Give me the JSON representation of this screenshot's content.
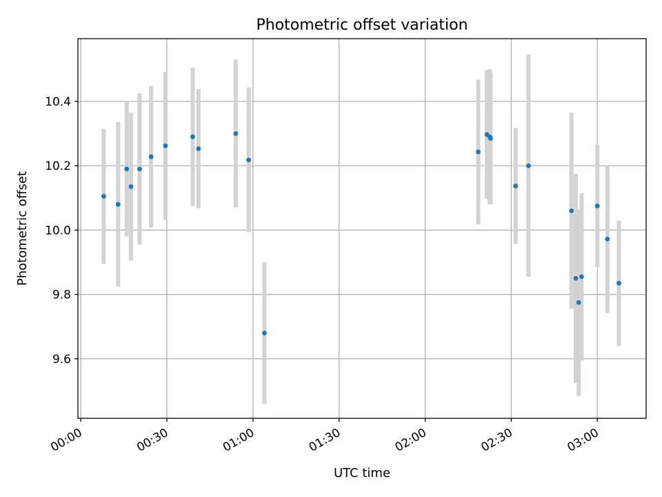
{
  "chart_data": {
    "type": "scatter",
    "title": "Photometric offset variation",
    "xlabel": "UTC time",
    "ylabel": "Photometric offset",
    "x_ticks": [
      "00:00",
      "00:30",
      "01:00",
      "01:30",
      "02:00",
      "02:30",
      "03:00"
    ],
    "y_ticks": [
      "9.6",
      "9.8",
      "10.0",
      "10.2",
      "10.4"
    ],
    "xlim": [
      "23:59",
      "03:17"
    ],
    "ylim": [
      9.415,
      10.595
    ],
    "grid": true,
    "colors": {
      "point": "#1f77b4",
      "errorbar": "#d3d3d3"
    },
    "points": [
      {
        "time": "00:08",
        "y": 10.105,
        "err": 0.21
      },
      {
        "time": "00:13",
        "y": 10.08,
        "err": 0.255
      },
      {
        "time": "00:16",
        "y": 10.19,
        "err": 0.21
      },
      {
        "time": "00:17.5",
        "y": 10.135,
        "err": 0.23
      },
      {
        "time": "00:20.5",
        "y": 10.19,
        "err": 0.235
      },
      {
        "time": "00:24.5",
        "y": 10.228,
        "err": 0.22
      },
      {
        "time": "00:29.5",
        "y": 10.262,
        "err": 0.23
      },
      {
        "time": "00:39",
        "y": 10.29,
        "err": 0.215
      },
      {
        "time": "00:41",
        "y": 10.253,
        "err": 0.185
      },
      {
        "time": "00:54",
        "y": 10.3,
        "err": 0.23
      },
      {
        "time": "00:58.5",
        "y": 10.218,
        "err": 0.225
      },
      {
        "time": "01:04",
        "y": 9.68,
        "err": 0.22
      },
      {
        "time": "02:18.5",
        "y": 10.243,
        "err": 0.225
      },
      {
        "time": "02:21.5",
        "y": 10.297,
        "err": 0.2
      },
      {
        "time": "02:22.5",
        "y": 10.29,
        "err": 0.21
      },
      {
        "time": "02:22.8",
        "y": 10.285,
        "err": 0.205
      },
      {
        "time": "02:31.5",
        "y": 10.137,
        "err": 0.18
      },
      {
        "time": "02:36",
        "y": 10.2,
        "err": 0.345
      },
      {
        "time": "02:51",
        "y": 10.06,
        "err": 0.305
      },
      {
        "time": "02:52.5",
        "y": 9.85,
        "err": 0.325
      },
      {
        "time": "02:53.5",
        "y": 9.775,
        "err": 0.29
      },
      {
        "time": "02:54.5",
        "y": 9.855,
        "err": 0.26
      },
      {
        "time": "03:00",
        "y": 10.075,
        "err": 0.19
      },
      {
        "time": "03:03.5",
        "y": 9.972,
        "err": 0.23
      },
      {
        "time": "03:07.5",
        "y": 9.835,
        "err": 0.195
      }
    ]
  }
}
